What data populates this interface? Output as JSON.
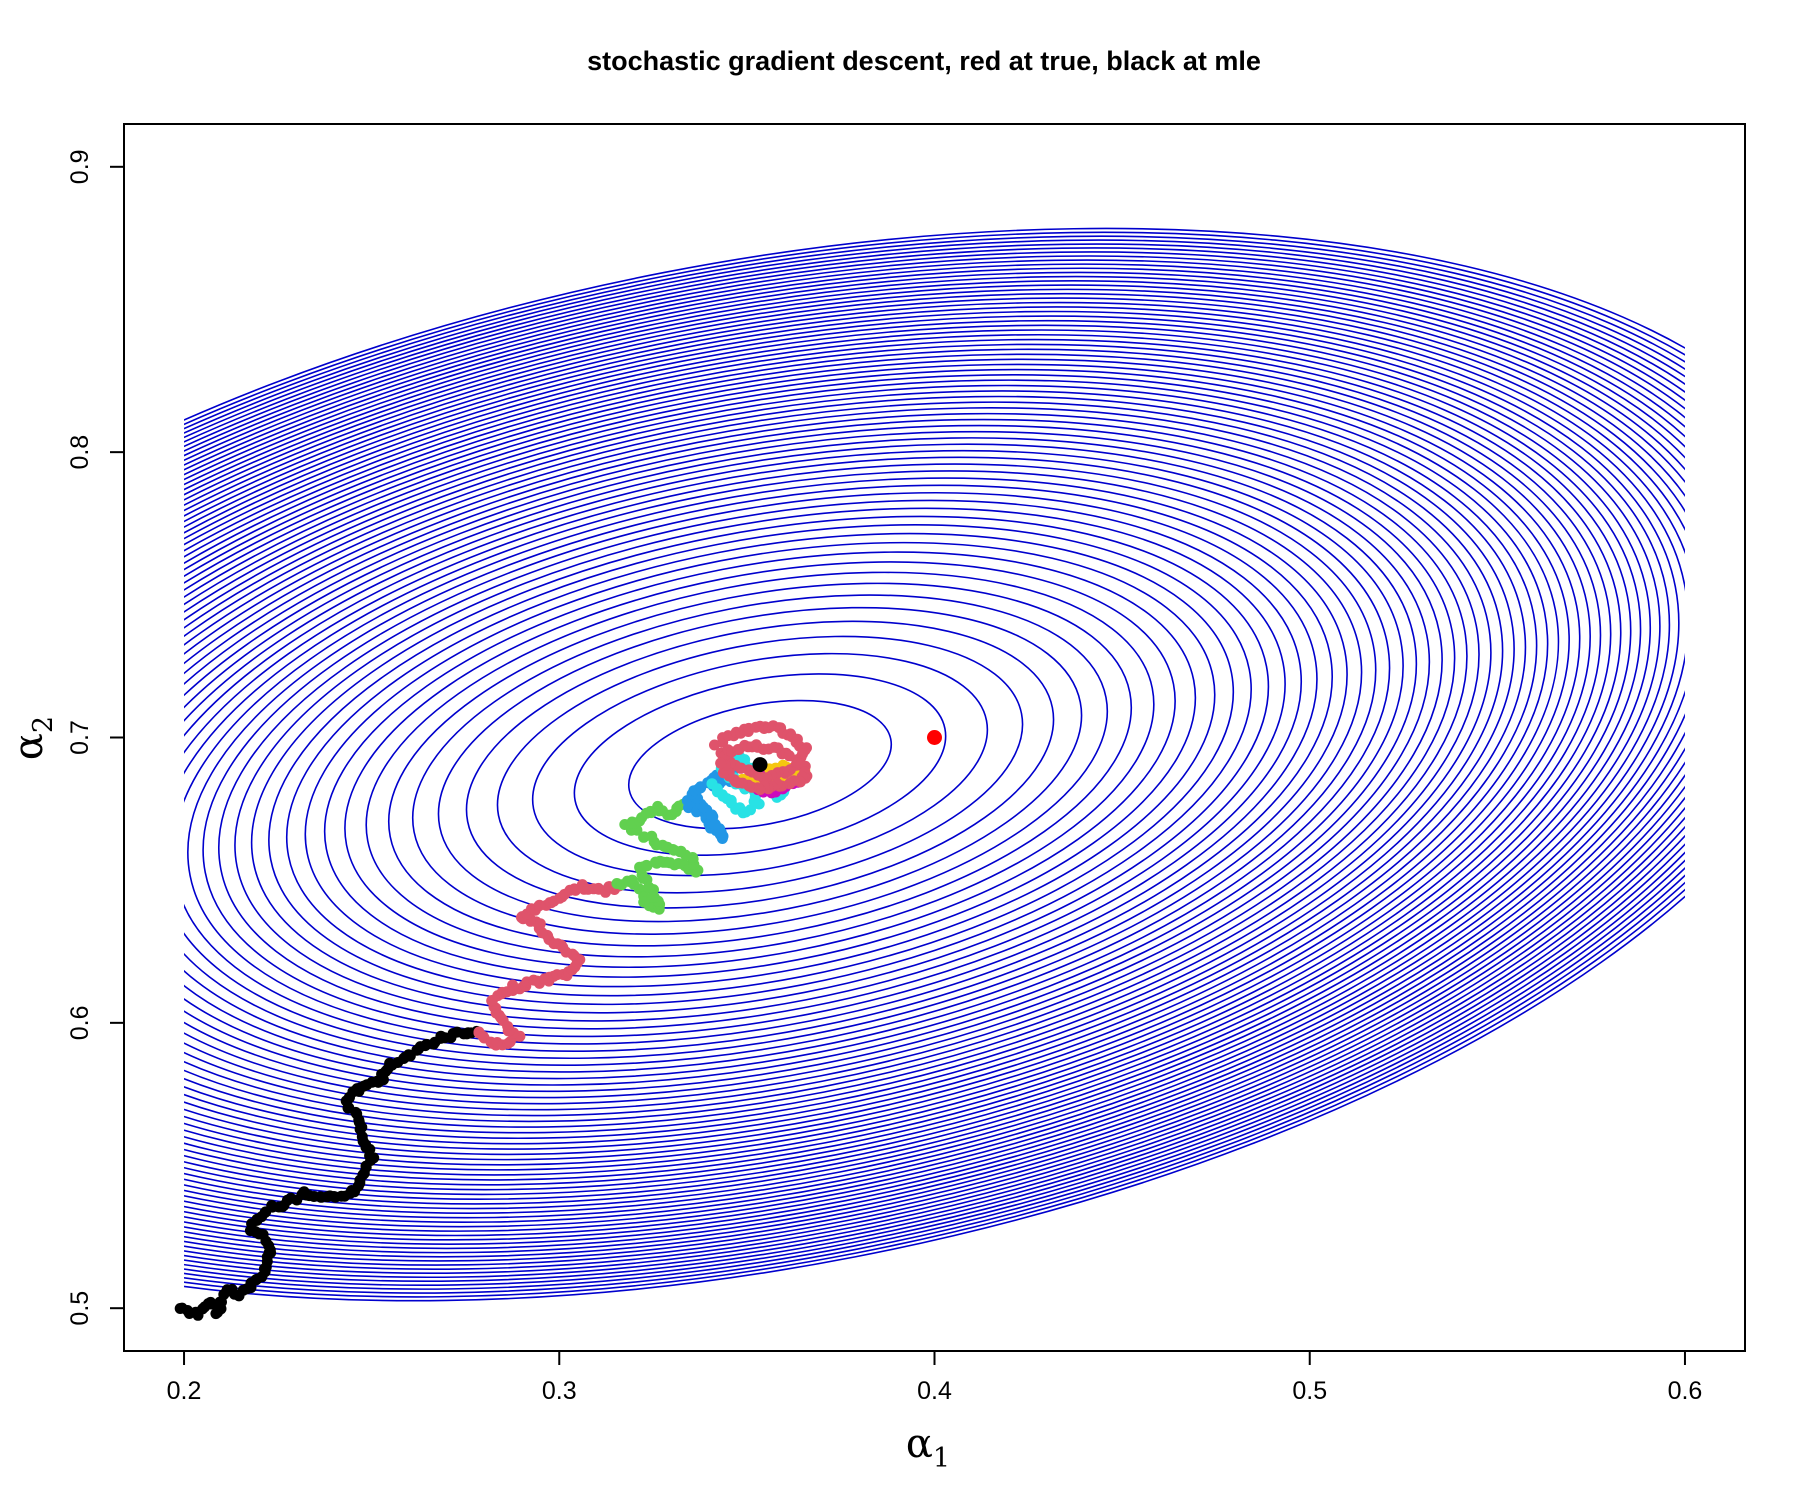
{
  "chart_data": {
    "type": "scatter",
    "title": "stochastic gradient descent, red at true, black at mle",
    "xlabel": {
      "base": "α",
      "sub": "1"
    },
    "ylabel": {
      "base": "α",
      "sub": "2"
    },
    "xlim": [
      0.184,
      0.616
    ],
    "ylim": [
      0.485,
      0.915
    ],
    "xticks": [
      0.2,
      0.3,
      0.4,
      0.5,
      0.6
    ],
    "yticks": [
      0.5,
      0.6,
      0.7,
      0.8,
      0.9
    ],
    "xtick_labels": [
      "0.2",
      "0.3",
      "0.4",
      "0.5",
      "0.6"
    ],
    "ytick_labels": [
      "0.5",
      "0.6",
      "0.7",
      "0.8",
      "0.9"
    ],
    "grid": false,
    "legend": "none",
    "contour": {
      "color": "#0000CD",
      "x_range": [
        0.2,
        0.6
      ],
      "y_range": [
        0.5,
        0.9
      ],
      "center": [
        0.3535,
        0.6905
      ],
      "semi_axis_x": 0.0355,
      "semi_axis_y": 0.021,
      "tilt_deg": -11,
      "levels": 70
    },
    "true_point": {
      "x": 0.4,
      "y": 0.7,
      "color": "#FF0000"
    },
    "mle_point": {
      "x": 0.3535,
      "y": 0.6905,
      "color": "#000000"
    },
    "series": [
      {
        "color": "#000000",
        "path": [
          [
            0.199,
            0.5
          ],
          [
            0.204,
            0.498
          ],
          [
            0.207,
            0.502
          ],
          [
            0.209,
            0.498
          ],
          [
            0.21,
            0.503
          ],
          [
            0.212,
            0.507
          ],
          [
            0.215,
            0.505
          ],
          [
            0.22,
            0.51
          ],
          [
            0.222,
            0.515
          ],
          [
            0.223,
            0.52
          ],
          [
            0.221,
            0.525
          ],
          [
            0.218,
            0.528
          ],
          [
            0.22,
            0.532
          ],
          [
            0.223,
            0.535
          ],
          [
            0.228,
            0.537
          ],
          [
            0.232,
            0.54
          ],
          [
            0.237,
            0.538
          ],
          [
            0.24,
            0.539
          ],
          [
            0.243,
            0.54
          ],
          [
            0.247,
            0.542
          ],
          [
            0.248,
            0.548
          ],
          [
            0.25,
            0.553
          ],
          [
            0.248,
            0.558
          ],
          [
            0.247,
            0.562
          ],
          [
            0.246,
            0.568
          ],
          [
            0.243,
            0.572
          ],
          [
            0.246,
            0.576
          ],
          [
            0.249,
            0.579
          ],
          [
            0.252,
            0.579
          ],
          [
            0.255,
            0.585
          ],
          [
            0.26,
            0.588
          ],
          [
            0.264,
            0.592
          ],
          [
            0.267,
            0.594
          ],
          [
            0.272,
            0.596
          ],
          [
            0.278,
            0.597
          ]
        ]
      },
      {
        "color": "#DF536B",
        "path": [
          [
            0.278,
            0.597
          ],
          [
            0.283,
            0.592
          ],
          [
            0.289,
            0.595
          ],
          [
            0.285,
            0.6
          ],
          [
            0.282,
            0.607
          ],
          [
            0.287,
            0.612
          ],
          [
            0.292,
            0.614
          ],
          [
            0.297,
            0.615
          ],
          [
            0.301,
            0.617
          ],
          [
            0.304,
            0.618
          ],
          [
            0.306,
            0.622
          ],
          [
            0.301,
            0.626
          ],
          [
            0.297,
            0.63
          ],
          [
            0.294,
            0.635
          ],
          [
            0.29,
            0.637
          ],
          [
            0.293,
            0.64
          ],
          [
            0.297,
            0.642
          ],
          [
            0.302,
            0.645
          ],
          [
            0.306,
            0.648
          ],
          [
            0.311,
            0.646
          ],
          [
            0.316,
            0.648
          ]
        ]
      },
      {
        "color": "#61D04F",
        "path": [
          [
            0.316,
            0.648
          ],
          [
            0.32,
            0.65
          ],
          [
            0.323,
            0.642
          ],
          [
            0.327,
            0.64
          ],
          [
            0.324,
            0.647
          ],
          [
            0.321,
            0.655
          ],
          [
            0.327,
            0.656
          ],
          [
            0.333,
            0.655
          ],
          [
            0.337,
            0.653
          ],
          [
            0.335,
            0.658
          ],
          [
            0.331,
            0.661
          ],
          [
            0.326,
            0.663
          ],
          [
            0.322,
            0.666
          ],
          [
            0.318,
            0.669
          ],
          [
            0.322,
            0.672
          ],
          [
            0.326,
            0.675
          ],
          [
            0.33,
            0.673
          ],
          [
            0.334,
            0.677
          ]
        ]
      },
      {
        "color": "#2297E6",
        "path": [
          [
            0.334,
            0.677
          ],
          [
            0.338,
            0.673
          ],
          [
            0.341,
            0.668
          ],
          [
            0.344,
            0.665
          ],
          [
            0.342,
            0.67
          ],
          [
            0.339,
            0.675
          ],
          [
            0.335,
            0.68
          ],
          [
            0.339,
            0.684
          ],
          [
            0.343,
            0.687
          ],
          [
            0.347,
            0.69
          ],
          [
            0.345,
            0.685
          ],
          [
            0.341,
            0.683
          ]
        ]
      },
      {
        "color": "#28E2E5",
        "path": [
          [
            0.341,
            0.683
          ],
          [
            0.344,
            0.679
          ],
          [
            0.349,
            0.674
          ],
          [
            0.353,
            0.677
          ],
          [
            0.351,
            0.682
          ],
          [
            0.346,
            0.685
          ],
          [
            0.343,
            0.69
          ],
          [
            0.347,
            0.694
          ],
          [
            0.352,
            0.689
          ],
          [
            0.356,
            0.686
          ],
          [
            0.36,
            0.683
          ],
          [
            0.358,
            0.679
          ]
        ]
      },
      {
        "color": "#CD0BBC",
        "path": [
          [
            0.351,
            0.684
          ],
          [
            0.355,
            0.681
          ],
          [
            0.36,
            0.682
          ],
          [
            0.364,
            0.684
          ],
          [
            0.362,
            0.688
          ],
          [
            0.357,
            0.687
          ],
          [
            0.352,
            0.686
          ]
        ]
      },
      {
        "color": "#F5C710",
        "path": [
          [
            0.349,
            0.686
          ],
          [
            0.353,
            0.684
          ],
          [
            0.358,
            0.685
          ],
          [
            0.362,
            0.686
          ],
          [
            0.365,
            0.688
          ],
          [
            0.361,
            0.69
          ],
          [
            0.356,
            0.689
          ]
        ]
      },
      {
        "color": "#DF536B",
        "path": [
          [
            0.342,
            0.698
          ],
          [
            0.346,
            0.701
          ],
          [
            0.351,
            0.703
          ],
          [
            0.356,
            0.704
          ],
          [
            0.36,
            0.702
          ],
          [
            0.363,
            0.699
          ],
          [
            0.366,
            0.695
          ],
          [
            0.364,
            0.691
          ],
          [
            0.36,
            0.688
          ],
          [
            0.355,
            0.686
          ],
          [
            0.35,
            0.688
          ],
          [
            0.346,
            0.691
          ],
          [
            0.343,
            0.694
          ],
          [
            0.347,
            0.696
          ],
          [
            0.352,
            0.697
          ],
          [
            0.357,
            0.696
          ],
          [
            0.361,
            0.694
          ],
          [
            0.365,
            0.69
          ],
          [
            0.366,
            0.686
          ],
          [
            0.362,
            0.684
          ],
          [
            0.357,
            0.683
          ],
          [
            0.352,
            0.682
          ],
          [
            0.348,
            0.684
          ],
          [
            0.345,
            0.687
          ],
          [
            0.343,
            0.691
          ]
        ]
      }
    ]
  }
}
